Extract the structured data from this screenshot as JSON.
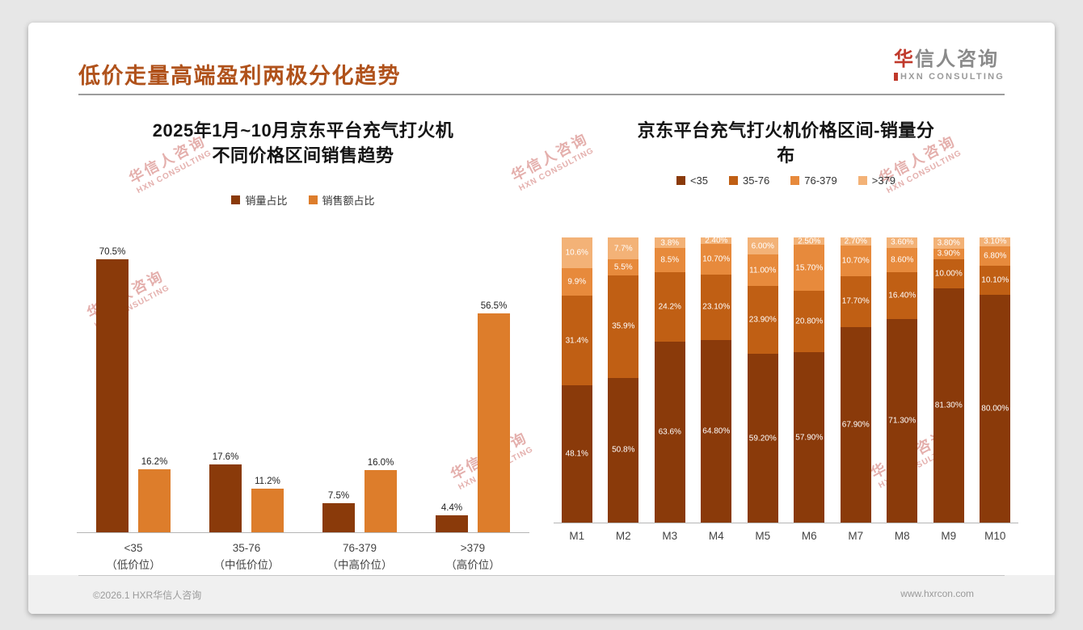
{
  "page": {
    "title": "低价走量高端盈利两极分化趋势",
    "footer": {
      "left": "©2026.1 HXR华信人咨询",
      "right": "www.hxrcon.com"
    }
  },
  "logo": {
    "cn_first": "华",
    "cn_rest": "信人咨询",
    "en": "HXN CONSULTING"
  },
  "watermark": {
    "cn": "华信人咨询",
    "en": "HXN CONSULTING"
  },
  "colors": {
    "title": "#B0521B",
    "bar_dark": "#8A3A0A",
    "bar_orange": "#DD7D2B",
    "stack_colors": [
      "#8A3A0A",
      "#C05F14",
      "#E78A3C",
      "#F3B277"
    ]
  },
  "chart_data": [
    {
      "type": "bar",
      "title_lines": [
        "2025年1月~10月京东平台充气打火机",
        "不同价格区间销售趋势"
      ],
      "categories": [
        "<35",
        "35-76",
        "76-379",
        ">379"
      ],
      "category_sublabels": [
        "（低价位）",
        "（中低价位）",
        "（中高价位）",
        "（高价位）"
      ],
      "series": [
        {
          "name": "销量占比",
          "color": "#8A3A0A",
          "values": [
            70.5,
            17.6,
            7.5,
            4.4
          ],
          "labels": [
            "70.5%",
            "17.6%",
            "7.5%",
            "4.4%"
          ]
        },
        {
          "name": "销售额占比",
          "color": "#DD7D2B",
          "values": [
            16.2,
            11.2,
            16.0,
            56.5
          ],
          "labels": [
            "16.2%",
            "11.2%",
            "16.0%",
            "56.5%"
          ]
        }
      ],
      "unit": "%",
      "ylim": [
        0,
        75
      ],
      "grid": false,
      "legend_position": "top"
    },
    {
      "type": "bar",
      "subtype": "stacked-100pct",
      "title_lines": [
        "京东平台充气打火机价格区间-销量分",
        "布"
      ],
      "categories": [
        "M1",
        "M2",
        "M3",
        "M4",
        "M5",
        "M6",
        "M7",
        "M8",
        "M9",
        "M10"
      ],
      "series": [
        {
          "name": "<35",
          "color": "#8A3A0A",
          "values": [
            48.1,
            50.8,
            63.6,
            64.8,
            59.2,
            57.9,
            67.9,
            71.3,
            81.3,
            80.0
          ],
          "labels": [
            "48.1%",
            "50.8%",
            "63.6%",
            "64.80%",
            "59.20%",
            "57.90%",
            "67.90%",
            "71.30%",
            "81.30%",
            "80.00%"
          ]
        },
        {
          "name": "35-76",
          "color": "#C05F14",
          "values": [
            31.4,
            35.9,
            24.2,
            23.1,
            23.9,
            20.8,
            17.7,
            16.4,
            10.0,
            10.1
          ],
          "labels": [
            "31.4%",
            "35.9%",
            "24.2%",
            "23.10%",
            "23.90%",
            "20.80%",
            "17.70%",
            "16.40%",
            "10.00%",
            "10.10%"
          ]
        },
        {
          "name": "76-379",
          "color": "#E78A3C",
          "values": [
            9.9,
            5.5,
            8.5,
            10.7,
            11.0,
            15.7,
            10.7,
            8.6,
            3.9,
            6.8
          ],
          "labels": [
            "9.9%",
            "5.5%",
            "8.5%",
            "10.70%",
            "11.00%",
            "15.70%",
            "10.70%",
            "8.60%",
            "3.90%",
            "6.80%"
          ]
        },
        {
          "name": ">379",
          "color": "#F3B277",
          "values": [
            10.6,
            7.7,
            3.8,
            2.4,
            6.0,
            2.5,
            2.7,
            3.6,
            3.8,
            3.1
          ],
          "labels": [
            "10.6%",
            "7.7%",
            "3.8%",
            "2.40%",
            "6.00%",
            "2.50%",
            "2.70%",
            "3.60%",
            "3.80%",
            "3.10%"
          ]
        }
      ],
      "unit": "%",
      "grid": false,
      "legend_position": "top"
    }
  ]
}
